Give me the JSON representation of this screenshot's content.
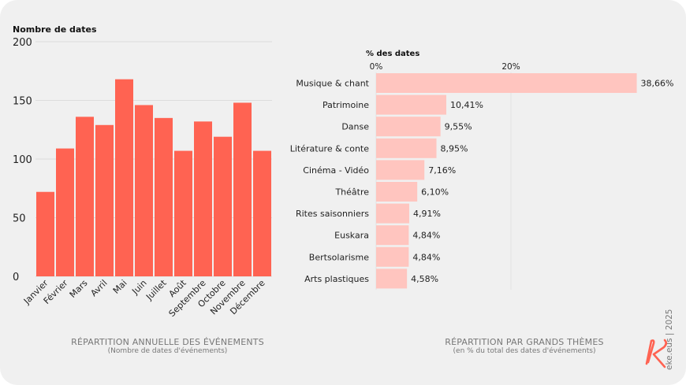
{
  "chart_data": [
    {
      "type": "bar",
      "ylabel": "Nombre de dates",
      "ylim": [
        0,
        200
      ],
      "yticks": [
        "0",
        "50",
        "100",
        "150",
        "200"
      ],
      "grid": true,
      "categories": [
        "Janvier",
        "Février",
        "Mars",
        "Avril",
        "Mai",
        "Juin",
        "Juillet",
        "Août",
        "Septembre",
        "Octobre",
        "Novembre",
        "Décembre"
      ],
      "values": [
        72,
        109,
        136,
        129,
        168,
        146,
        135,
        107,
        132,
        119,
        148,
        107
      ],
      "color": "#ff6352",
      "caption_title": "RÉPARTITION ANNUELLE DES ÉVÉNEMENTS",
      "caption_subtitle": "(Nombre de dates d'événements)"
    },
    {
      "type": "bar",
      "orientation": "horizontal",
      "xlabel": "% des dates",
      "xticks": [
        "0%",
        "20%"
      ],
      "xlim": [
        0,
        40
      ],
      "categories": [
        "Musique & chant",
        "Patrimoine",
        "Danse",
        "Litérature & conte",
        "Cinéma - Vidéo",
        "Théâtre",
        "Rites saisonniers",
        "Euskara",
        "Bertsolarisme",
        "Arts plastiques"
      ],
      "values": [
        38.66,
        10.41,
        9.55,
        8.95,
        7.16,
        6.1,
        4.91,
        4.84,
        4.84,
        4.58
      ],
      "data_labels": [
        "38,66%",
        "10,41%",
        "9,55%",
        "8,95%",
        "7,16%",
        "6,10%",
        "4,91%",
        "4,84%",
        "4,84%",
        "4,58%"
      ],
      "color": "#ffc5bf",
      "caption_title": "RÉPARTITION PAR GRANDS THÈMES",
      "caption_subtitle": "(en % du total des dates d'événements)"
    }
  ],
  "footer": {
    "credit": "eke.eus | 2025",
    "logo": "K"
  }
}
